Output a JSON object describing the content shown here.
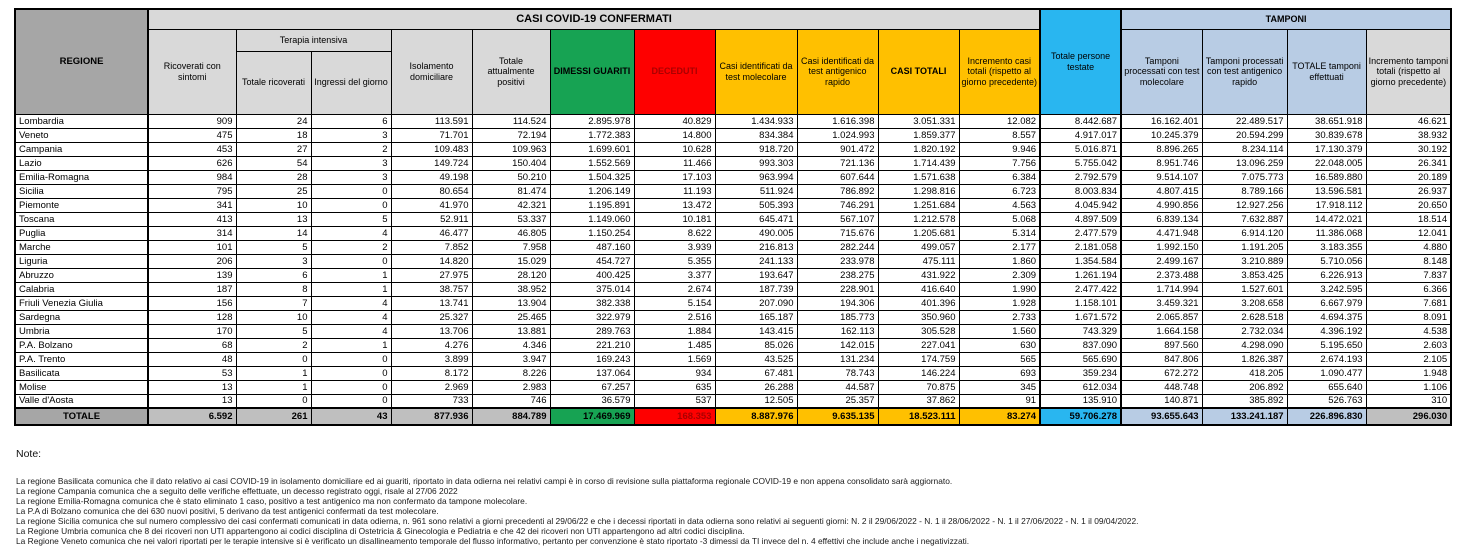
{
  "table": {
    "title": "CASI COVID-19 CONFERMATI",
    "tamponi_title": "TAMPONI",
    "headers": {
      "regione": "REGIONE",
      "ricoverati": "Ricoverati con sintomi",
      "terapia_intensiva": "Terapia intensiva",
      "totale_ricoverati": "Totale ricoverati",
      "ingressi": "Ingressi del giorno",
      "isolamento": "Isolamento domiciliare",
      "attualmente_positivi": "Totale attualmente positivi",
      "dimessi": "DIMESSI GUARITI",
      "deceduti": "DECEDUTI",
      "casi_molecolare": "Casi identificati da test molecolare",
      "casi_antigenico": "Casi identificati da test antigenico rapido",
      "casi_totali": "CASI TOTALI",
      "incremento_casi": "Incremento casi totali (rispetto al giorno precedente)",
      "persone_testate": "Totale persone testate",
      "tamponi_molecolare": "Tamponi processati con test molecolare",
      "tamponi_antigenico": "Tamponi processati con test antigenico rapido",
      "totale_tamponi": "TOTALE tamponi effettuati",
      "incremento_tamponi": "Incremento tamponi totali (rispetto al giorno precedente)"
    },
    "rows": [
      {
        "regione": "Lombardia",
        "values": [
          "909",
          "24",
          "6",
          "113.591",
          "114.524",
          "2.895.978",
          "40.829",
          "1.434.933",
          "1.616.398",
          "3.051.331",
          "12.082",
          "8.442.687",
          "16.162.401",
          "22.489.517",
          "38.651.918",
          "46.621"
        ]
      },
      {
        "regione": "Veneto",
        "values": [
          "475",
          "18",
          "3",
          "71.701",
          "72.194",
          "1.772.383",
          "14.800",
          "834.384",
          "1.024.993",
          "1.859.377",
          "8.557",
          "4.917.017",
          "10.245.379",
          "20.594.299",
          "30.839.678",
          "38.932"
        ]
      },
      {
        "regione": "Campania",
        "values": [
          "453",
          "27",
          "2",
          "109.483",
          "109.963",
          "1.699.601",
          "10.628",
          "918.720",
          "901.472",
          "1.820.192",
          "9.946",
          "5.016.871",
          "8.896.265",
          "8.234.114",
          "17.130.379",
          "30.192"
        ]
      },
      {
        "regione": "Lazio",
        "values": [
          "626",
          "54",
          "3",
          "149.724",
          "150.404",
          "1.552.569",
          "11.466",
          "993.303",
          "721.136",
          "1.714.439",
          "7.756",
          "5.755.042",
          "8.951.746",
          "13.096.259",
          "22.048.005",
          "26.341"
        ]
      },
      {
        "regione": "Emilia-Romagna",
        "values": [
          "984",
          "28",
          "3",
          "49.198",
          "50.210",
          "1.504.325",
          "17.103",
          "963.994",
          "607.644",
          "1.571.638",
          "6.384",
          "2.792.579",
          "9.514.107",
          "7.075.773",
          "16.589.880",
          "20.189"
        ]
      },
      {
        "regione": "Sicilia",
        "values": [
          "795",
          "25",
          "0",
          "80.654",
          "81.474",
          "1.206.149",
          "11.193",
          "511.924",
          "786.892",
          "1.298.816",
          "6.723",
          "8.003.834",
          "4.807.415",
          "8.789.166",
          "13.596.581",
          "26.937"
        ]
      },
      {
        "regione": "Piemonte",
        "values": [
          "341",
          "10",
          "0",
          "41.970",
          "42.321",
          "1.195.891",
          "13.472",
          "505.393",
          "746.291",
          "1.251.684",
          "4.563",
          "4.045.942",
          "4.990.856",
          "12.927.256",
          "17.918.112",
          "20.650"
        ]
      },
      {
        "regione": "Toscana",
        "values": [
          "413",
          "13",
          "5",
          "52.911",
          "53.337",
          "1.149.060",
          "10.181",
          "645.471",
          "567.107",
          "1.212.578",
          "5.068",
          "4.897.509",
          "6.839.134",
          "7.632.887",
          "14.472.021",
          "18.514"
        ]
      },
      {
        "regione": "Puglia",
        "values": [
          "314",
          "14",
          "4",
          "46.477",
          "46.805",
          "1.150.254",
          "8.622",
          "490.005",
          "715.676",
          "1.205.681",
          "5.314",
          "2.477.579",
          "4.471.948",
          "6.914.120",
          "11.386.068",
          "12.041"
        ]
      },
      {
        "regione": "Marche",
        "values": [
          "101",
          "5",
          "2",
          "7.852",
          "7.958",
          "487.160",
          "3.939",
          "216.813",
          "282.244",
          "499.057",
          "2.177",
          "2.181.058",
          "1.992.150",
          "1.191.205",
          "3.183.355",
          "4.880"
        ]
      },
      {
        "regione": "Liguria",
        "values": [
          "206",
          "3",
          "0",
          "14.820",
          "15.029",
          "454.727",
          "5.355",
          "241.133",
          "233.978",
          "475.111",
          "1.860",
          "1.354.584",
          "2.499.167",
          "3.210.889",
          "5.710.056",
          "8.148"
        ]
      },
      {
        "regione": "Abruzzo",
        "values": [
          "139",
          "6",
          "1",
          "27.975",
          "28.120",
          "400.425",
          "3.377",
          "193.647",
          "238.275",
          "431.922",
          "2.309",
          "1.261.194",
          "2.373.488",
          "3.853.425",
          "6.226.913",
          "7.837"
        ]
      },
      {
        "regione": "Calabria",
        "values": [
          "187",
          "8",
          "1",
          "38.757",
          "38.952",
          "375.014",
          "2.674",
          "187.739",
          "228.901",
          "416.640",
          "1.990",
          "2.477.422",
          "1.714.994",
          "1.527.601",
          "3.242.595",
          "6.366"
        ]
      },
      {
        "regione": "Friuli Venezia Giulia",
        "values": [
          "156",
          "7",
          "4",
          "13.741",
          "13.904",
          "382.338",
          "5.154",
          "207.090",
          "194.306",
          "401.396",
          "1.928",
          "1.158.101",
          "3.459.321",
          "3.208.658",
          "6.667.979",
          "7.681"
        ]
      },
      {
        "regione": "Sardegna",
        "values": [
          "128",
          "10",
          "4",
          "25.327",
          "25.465",
          "322.979",
          "2.516",
          "165.187",
          "185.773",
          "350.960",
          "2.733",
          "1.671.572",
          "2.065.857",
          "2.628.518",
          "4.694.375",
          "8.091"
        ]
      },
      {
        "regione": "Umbria",
        "values": [
          "170",
          "5",
          "4",
          "13.706",
          "13.881",
          "289.763",
          "1.884",
          "143.415",
          "162.113",
          "305.528",
          "1.560",
          "743.329",
          "1.664.158",
          "2.732.034",
          "4.396.192",
          "4.538"
        ]
      },
      {
        "regione": "P.A. Bolzano",
        "values": [
          "68",
          "2",
          "1",
          "4.276",
          "4.346",
          "221.210",
          "1.485",
          "85.026",
          "142.015",
          "227.041",
          "630",
          "837.090",
          "897.560",
          "4.298.090",
          "5.195.650",
          "2.603"
        ]
      },
      {
        "regione": "P.A. Trento",
        "values": [
          "48",
          "0",
          "0",
          "3.899",
          "3.947",
          "169.243",
          "1.569",
          "43.525",
          "131.234",
          "174.759",
          "565",
          "565.690",
          "847.806",
          "1.826.387",
          "2.674.193",
          "2.105"
        ]
      },
      {
        "regione": "Basilicata",
        "values": [
          "53",
          "1",
          "0",
          "8.172",
          "8.226",
          "137.064",
          "934",
          "67.481",
          "78.743",
          "146.224",
          "693",
          "359.234",
          "672.272",
          "418.205",
          "1.090.477",
          "1.948"
        ]
      },
      {
        "regione": "Molise",
        "values": [
          "13",
          "1",
          "0",
          "2.969",
          "2.983",
          "67.257",
          "635",
          "26.288",
          "44.587",
          "70.875",
          "345",
          "612.034",
          "448.748",
          "206.892",
          "655.640",
          "1.106"
        ]
      },
      {
        "regione": "Valle d'Aosta",
        "values": [
          "13",
          "0",
          "0",
          "733",
          "746",
          "36.579",
          "537",
          "12.505",
          "25.357",
          "37.862",
          "91",
          "135.910",
          "140.871",
          "385.892",
          "526.763",
          "310"
        ]
      }
    ],
    "totale": {
      "label": "TOTALE",
      "values": [
        "6.592",
        "261",
        "43",
        "877.936",
        "884.789",
        "17.469.969",
        "168.353",
        "8.887.976",
        "9.635.135",
        "18.523.111",
        "83.274",
        "59.706.278",
        "93.655.643",
        "133.241.187",
        "226.896.830",
        "296.030"
      ]
    }
  },
  "notes": {
    "label": "Note:",
    "items": [
      "La regione Basilicata comunica che il dato relativo ai casi COVID-19 in isolamento domiciliare ed ai guariti, riportato in data odierna nei relativi campi è in corso di revisione sulla piattaforma regionale COVID-19 e non appena consolidato sarà aggiornato.",
      "La regione Campania comunica che a seguito delle verifiche effettuate, un decesso registrato oggi, risale al 27/06 2022",
      "La regione Emilia-Romagna comunica che è stato eliminato 1 caso, positivo a test antigenico ma non confermato da tampone molecolare.",
      "La P.A di Bolzano comunica che dei 630 nuovi positivi, 5 derivano da test antigenici confermati da test molecolare.",
      "La regione Sicilia comunica che sul numero complessivo dei casi confermati comunicati in data odierna, n. 961 sono relativi a giorni precedenti al 29/06/22 e che i decessi riportati in data odierna sono relativi ai seguenti giorni: N. 2 il 29/06/2022 - N. 1 il 28/06/2022 - N. 1 il 27/06/2022 - N. 1 il 09/04/2022.",
      "La Regione Umbria comunica che 8 dei ricoveri non UTI appartengono ai codici disciplina di Ostetricia & Ginecologia e Pediatria e che 42 dei ricoveri non UTI appartengono ad altri codici disciplina.",
      "La Regione Veneto comunica che nei valori riportati per le terapie intensive si è verificato un disallineamento temporale del flusso informativo, pertanto per convenzione è stato riportato -3 dimessi da TI invece del n. 4 effettivi che include anche i negativizzati."
    ]
  },
  "colors": {
    "header_gray": "#a6a6a6",
    "light_gray": "#d9d9d9",
    "green": "#17a353",
    "red": "#fe0000",
    "dark_red": "#aa0000",
    "yellow": "#ffc000",
    "cyan": "#29b6f0",
    "light_blue": "#b8cce4",
    "totale_gray": "#bfbfbf"
  }
}
